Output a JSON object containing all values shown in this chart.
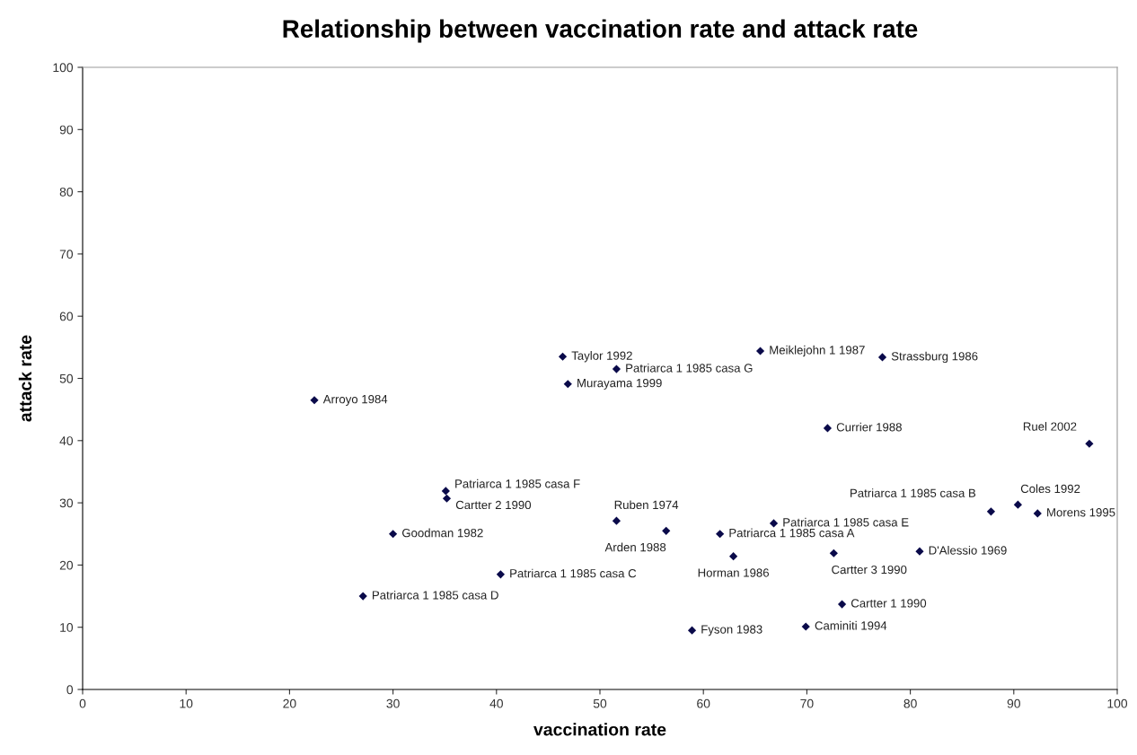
{
  "chart_data": {
    "type": "scatter",
    "title": "Relationship between vaccination rate and attack rate",
    "xlabel": "vaccination rate",
    "ylabel": "attack rate",
    "xlim": [
      0,
      100
    ],
    "xticks": [
      0,
      10,
      20,
      30,
      40,
      50,
      60,
      70,
      80,
      90,
      100
    ],
    "ylim": [
      0,
      100
    ],
    "yticks": [
      0,
      10,
      20,
      30,
      40,
      50,
      60,
      70,
      80,
      90,
      100
    ],
    "grid": false,
    "marker": "diamond",
    "series": [
      {
        "color": "#0a0a4a",
        "x": [
          22.4,
          35.1,
          35.2,
          30.0,
          27.1,
          40.4,
          46.4,
          51.6,
          46.9,
          51.6,
          56.4,
          65.5,
          77.3,
          72.0,
          97.3,
          66.8,
          61.6,
          62.9,
          72.6,
          87.8,
          90.4,
          92.3,
          80.9,
          73.4,
          69.9,
          58.9
        ],
        "values": [
          46.5,
          31.9,
          30.7,
          25.0,
          15.0,
          18.5,
          53.5,
          51.5,
          49.1,
          27.1,
          25.5,
          54.4,
          53.4,
          42.0,
          39.5,
          26.7,
          25.0,
          21.4,
          21.9,
          28.6,
          29.7,
          28.3,
          22.2,
          13.7,
          10.1,
          9.5
        ]
      }
    ],
    "annotations": [
      {
        "text": "Arroyo 1984",
        "x": 22.4,
        "y": 46.5
      },
      {
        "text": "Patriarca 1 1985 casa F",
        "x": 35.1,
        "y": 31.9
      },
      {
        "text": "Cartter 2 1990",
        "x": 35.2,
        "y": 30.7
      },
      {
        "text": "Goodman 1982",
        "x": 30.0,
        "y": 25.0
      },
      {
        "text": "Patriarca 1 1985 casa D",
        "x": 27.1,
        "y": 15.0
      },
      {
        "text": "Patriarca 1 1985 casa C",
        "x": 40.4,
        "y": 18.5
      },
      {
        "text": "Taylor 1992",
        "x": 46.4,
        "y": 53.5
      },
      {
        "text": "Patriarca 1 1985 casa G",
        "x": 51.6,
        "y": 51.5
      },
      {
        "text": "Murayama 1999",
        "x": 46.9,
        "y": 49.1
      },
      {
        "text": "Ruben 1974",
        "x": 51.6,
        "y": 27.1
      },
      {
        "text": "Arden 1988",
        "x": 56.4,
        "y": 25.5
      },
      {
        "text": "Meiklejohn 1 1987",
        "x": 65.5,
        "y": 54.4
      },
      {
        "text": "Strassburg 1986",
        "x": 77.3,
        "y": 53.4
      },
      {
        "text": "Currier 1988",
        "x": 72.0,
        "y": 42.0
      },
      {
        "text": "Ruel 2002",
        "x": 97.3,
        "y": 39.5
      },
      {
        "text": "Patriarca 1 1985 casa E",
        "x": 66.8,
        "y": 26.7
      },
      {
        "text": "Patriarca 1 1985 casa A",
        "x": 61.6,
        "y": 25.0
      },
      {
        "text": "Horman 1986",
        "x": 62.9,
        "y": 21.4
      },
      {
        "text": "Cartter 3 1990",
        "x": 72.6,
        "y": 21.9
      },
      {
        "text": "Patriarca 1 1985 casa B",
        "x": 87.8,
        "y": 28.6
      },
      {
        "text": "Coles 1992",
        "x": 90.4,
        "y": 29.7
      },
      {
        "text": "Morens 1995",
        "x": 92.3,
        "y": 28.3
      },
      {
        "text": "D'Alessio 1969",
        "x": 80.9,
        "y": 22.2
      },
      {
        "text": "Cartter 1 1990",
        "x": 73.4,
        "y": 13.7
      },
      {
        "text": "Caminiti 1994",
        "x": 69.9,
        "y": 10.1
      },
      {
        "text": "Fyson 1983",
        "x": 58.9,
        "y": 9.5
      }
    ]
  }
}
